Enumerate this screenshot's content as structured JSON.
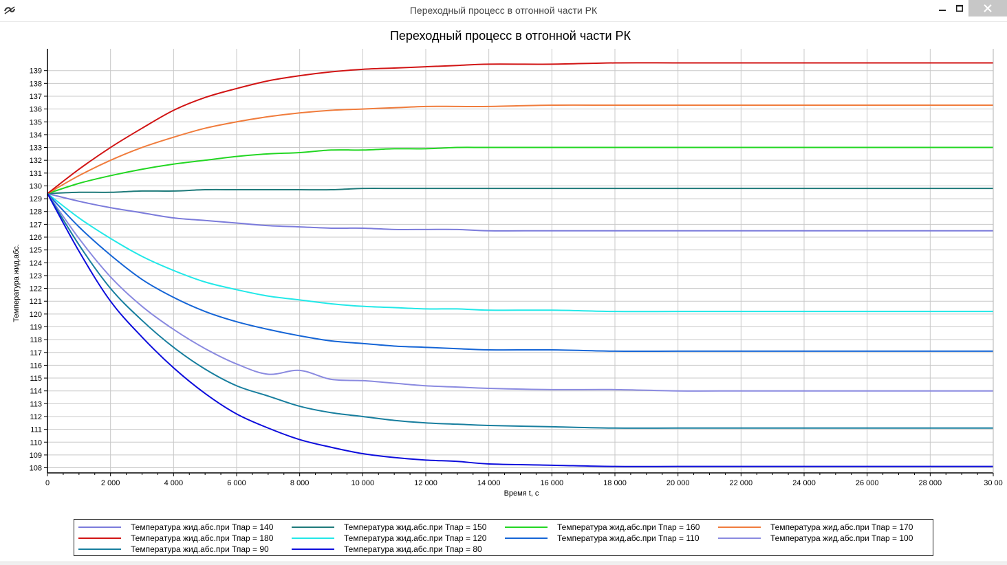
{
  "window": {
    "title": "Переходный процесс в отгонной части РК",
    "icons": {
      "app": "app-icon",
      "minimize": "minimize-icon",
      "maximize": "maximize-icon",
      "close": "close-icon"
    }
  },
  "chart_data": {
    "type": "line",
    "title": "Переходный процесс в отгонной части РК",
    "xlabel": "Время t, с",
    "ylabel": "Температура жид.абс.",
    "xlim": [
      0,
      30000
    ],
    "ylim": [
      107.6,
      140.7
    ],
    "xticks": [
      0,
      2000,
      4000,
      6000,
      8000,
      10000,
      12000,
      14000,
      16000,
      18000,
      20000,
      22000,
      24000,
      26000,
      28000,
      30000
    ],
    "xtick_labels": [
      "0",
      "2 000",
      "4 000",
      "6 000",
      "8 000",
      "10 000",
      "12 000",
      "14 000",
      "16 000",
      "18 000",
      "20 000",
      "22 000",
      "24 000",
      "26 000",
      "28 000",
      "30 00"
    ],
    "yticks": [
      108,
      109,
      110,
      111,
      112,
      113,
      114,
      115,
      116,
      117,
      118,
      119,
      120,
      121,
      122,
      123,
      124,
      125,
      126,
      127,
      128,
      129,
      130,
      131,
      132,
      133,
      134,
      135,
      136,
      137,
      138,
      139
    ],
    "grid": true,
    "legend_position": "bottom",
    "x": [
      0,
      1000,
      2000,
      3000,
      4000,
      5000,
      6000,
      7000,
      8000,
      9000,
      10000,
      11000,
      12000,
      13000,
      14000,
      16000,
      18000,
      20000,
      22000,
      24000,
      26000,
      28000,
      30000
    ],
    "series": [
      {
        "name": "Температура жид.абс.при Тпар = 140",
        "color": "#7b7bdb",
        "values": [
          129.4,
          128.8,
          128.3,
          127.9,
          127.5,
          127.3,
          127.1,
          126.9,
          126.8,
          126.7,
          126.7,
          126.6,
          126.6,
          126.6,
          126.5,
          126.5,
          126.5,
          126.5,
          126.5,
          126.5,
          126.5,
          126.5,
          126.5
        ]
      },
      {
        "name": "Температура жид.абс.при Тпар = 150",
        "color": "#1e7a7a",
        "values": [
          129.4,
          129.5,
          129.5,
          129.6,
          129.6,
          129.7,
          129.7,
          129.7,
          129.7,
          129.7,
          129.8,
          129.8,
          129.8,
          129.8,
          129.8,
          129.8,
          129.8,
          129.8,
          129.8,
          129.8,
          129.8,
          129.8,
          129.8
        ]
      },
      {
        "name": "Температура жид.абс.при Тпар = 160",
        "color": "#22d622",
        "values": [
          129.4,
          130.2,
          130.8,
          131.3,
          131.7,
          132.0,
          132.3,
          132.5,
          132.6,
          132.8,
          132.8,
          132.9,
          132.9,
          133.0,
          133.0,
          133.0,
          133.0,
          133.0,
          133.0,
          133.0,
          133.0,
          133.0,
          133.0
        ]
      },
      {
        "name": "Температура жид.абс.при Тпар = 170",
        "color": "#f07c3c",
        "values": [
          129.4,
          130.8,
          132.0,
          133.0,
          133.8,
          134.5,
          135.0,
          135.4,
          135.7,
          135.9,
          136.0,
          136.1,
          136.2,
          136.2,
          136.2,
          136.3,
          136.3,
          136.3,
          136.3,
          136.3,
          136.3,
          136.3,
          136.3
        ]
      },
      {
        "name": "Температура жид.абс.при Тпар = 180",
        "color": "#d11414",
        "values": [
          129.4,
          131.3,
          133.0,
          134.5,
          135.9,
          136.9,
          137.6,
          138.2,
          138.6,
          138.9,
          139.1,
          139.2,
          139.3,
          139.4,
          139.5,
          139.5,
          139.6,
          139.6,
          139.6,
          139.6,
          139.6,
          139.6,
          139.6
        ]
      },
      {
        "name": "Температура жид.абс.при Тпар = 120",
        "color": "#22e8e8",
        "values": [
          129.4,
          127.5,
          125.9,
          124.5,
          123.4,
          122.5,
          121.9,
          121.4,
          121.1,
          120.8,
          120.6,
          120.5,
          120.4,
          120.4,
          120.3,
          120.3,
          120.2,
          120.2,
          120.2,
          120.2,
          120.2,
          120.2,
          120.2
        ]
      },
      {
        "name": "Температура жид.абс.при Тпар = 110",
        "color": "#1565d6",
        "values": [
          129.4,
          126.8,
          124.6,
          122.7,
          121.3,
          120.2,
          119.4,
          118.8,
          118.3,
          117.9,
          117.7,
          117.5,
          117.4,
          117.3,
          117.2,
          117.2,
          117.1,
          117.1,
          117.1,
          117.1,
          117.1,
          117.1,
          117.1
        ]
      },
      {
        "name": "Температура жид.абс.при Тпар = 100",
        "color": "#8a8ae0",
        "values": [
          129.4,
          125.9,
          122.9,
          120.6,
          118.8,
          117.3,
          116.1,
          115.3,
          115.6,
          114.9,
          114.8,
          114.6,
          114.4,
          114.3,
          114.2,
          114.1,
          114.1,
          114.0,
          114.0,
          114.0,
          114.0,
          114.0,
          114.0
        ]
      },
      {
        "name": "Температура жид.абс.при Тпар = 90",
        "color": "#177e9e",
        "values": [
          129.4,
          125.4,
          122.0,
          119.5,
          117.4,
          115.7,
          114.4,
          113.6,
          112.8,
          112.3,
          112.0,
          111.7,
          111.5,
          111.4,
          111.3,
          111.2,
          111.1,
          111.1,
          111.1,
          111.1,
          111.1,
          111.1,
          111.1
        ]
      },
      {
        "name": "Температура жид.абс.при Тпар = 80",
        "color": "#0d0ddc",
        "values": [
          129.4,
          124.9,
          121.0,
          118.2,
          115.8,
          113.8,
          112.2,
          111.1,
          110.2,
          109.6,
          109.1,
          108.8,
          108.6,
          108.5,
          108.3,
          108.2,
          108.1,
          108.1,
          108.1,
          108.1,
          108.1,
          108.1,
          108.1
        ]
      }
    ]
  }
}
